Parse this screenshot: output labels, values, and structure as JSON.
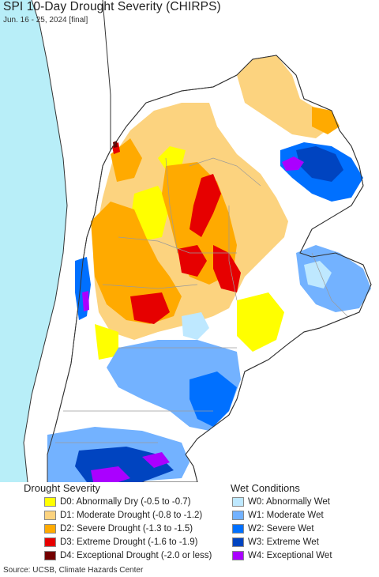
{
  "header": {
    "title": "SPI 10-Day Drought Severity (CHIRPS)",
    "subtitle": "Jun. 16 - 25, 2024 [final]"
  },
  "map": {
    "ocean_color": "#b8eef8",
    "land_outside_color": "#ffffff",
    "border_color": "#333333",
    "internal_border_color": "#9a9a9a"
  },
  "legend": {
    "drought": {
      "heading": "Drought Severity",
      "items": [
        {
          "label": "D0: Abnormally Dry (-0.5 to -0.7)",
          "color": "#ffff00"
        },
        {
          "label": "D1: Moderate Drought (-0.8 to -1.2)",
          "color": "#fcd37f"
        },
        {
          "label": "D2: Severe Drought (-1.3 to -1.5)",
          "color": "#ffaa00"
        },
        {
          "label": "D3: Extreme Drought (-1.6 to -1.9)",
          "color": "#e60000"
        },
        {
          "label": "D4: Exceptional Drought (-2.0 or less)",
          "color": "#730000"
        }
      ]
    },
    "wet": {
      "heading": "Wet Conditions",
      "items": [
        {
          "label": "W0: Abnormally Wet",
          "color": "#bee8ff"
        },
        {
          "label": "W1: Moderate Wet",
          "color": "#73b2ff"
        },
        {
          "label": "W2: Severe Wet",
          "color": "#0070ff"
        },
        {
          "label": "W3: Extreme Wet",
          "color": "#0044c0"
        },
        {
          "label": "W4: Exceptional Wet",
          "color": "#aa00ff"
        }
      ]
    }
  },
  "footer": {
    "source": "Source: UCSB, Climate Hazards Center"
  }
}
